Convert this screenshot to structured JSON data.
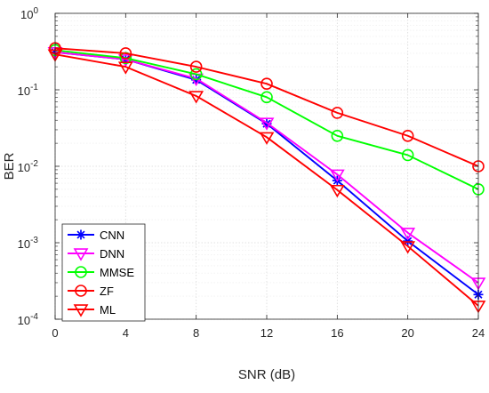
{
  "chart_data": {
    "type": "line",
    "title": "",
    "xlabel": "SNR (dB)",
    "ylabel": "BER",
    "x": [
      0,
      4,
      8,
      12,
      16,
      20,
      24
    ],
    "x_ticks": [
      "0",
      "4",
      "8",
      "12",
      "16",
      "20",
      "24"
    ],
    "xlim": [
      0,
      24
    ],
    "y_scale": "log",
    "ylim": [
      0.0001,
      1
    ],
    "y_ticks": [
      {
        "base": "10",
        "exp": "0",
        "value": 1
      },
      {
        "base": "10",
        "exp": "-1",
        "value": 0.1
      },
      {
        "base": "10",
        "exp": "-2",
        "value": 0.01
      },
      {
        "base": "10",
        "exp": "-3",
        "value": 0.001
      },
      {
        "base": "10",
        "exp": "-4",
        "value": 0.0001
      }
    ],
    "grid": true,
    "legend_position": "bottom-left",
    "series": [
      {
        "name": "CNN",
        "color": "#0000ff",
        "marker": "asterisk",
        "values": [
          0.31,
          0.25,
          0.135,
          0.036,
          0.0065,
          0.00105,
          0.00021
        ]
      },
      {
        "name": "DNN",
        "color": "#ff00ff",
        "marker": "triangle-down",
        "values": [
          0.31,
          0.25,
          0.14,
          0.037,
          0.0078,
          0.00135,
          0.0003
        ]
      },
      {
        "name": "MMSE",
        "color": "#00ff00",
        "marker": "circle",
        "values": [
          0.33,
          0.26,
          0.16,
          0.08,
          0.025,
          0.014,
          0.005
        ]
      },
      {
        "name": "ZF",
        "color": "#ff0000",
        "marker": "circle",
        "values": [
          0.35,
          0.3,
          0.2,
          0.12,
          0.05,
          0.025,
          0.01
        ]
      },
      {
        "name": "ML",
        "color": "#ff0000",
        "marker": "triangle-down",
        "values": [
          0.29,
          0.2,
          0.083,
          0.024,
          0.0049,
          0.0009,
          0.00015
        ]
      }
    ]
  }
}
